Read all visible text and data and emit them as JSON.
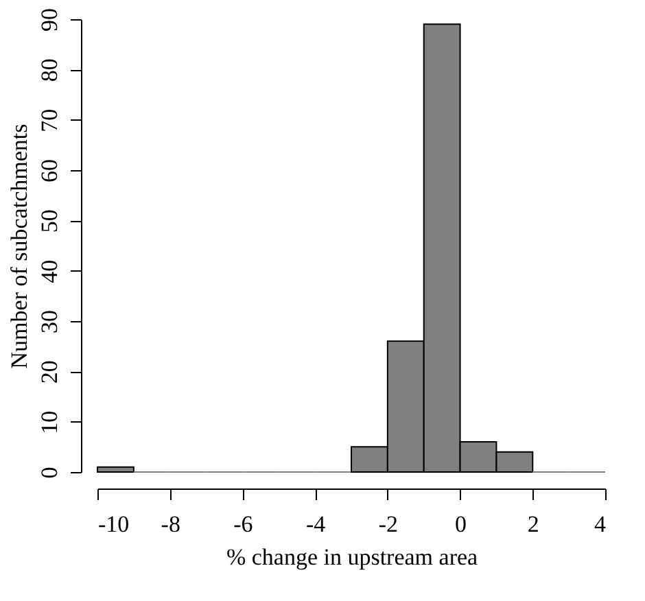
{
  "chart_data": {
    "type": "histogram",
    "xlabel": "% change in upstream area",
    "ylabel": "Number of subcatchments",
    "bins": [
      -10,
      -9,
      -8,
      -7,
      -6,
      -5,
      -4,
      -3,
      -2,
      -1,
      0,
      1,
      2,
      3,
      4
    ],
    "values": [
      1,
      0,
      0,
      0,
      0,
      0,
      0,
      5,
      26,
      89,
      6,
      4,
      0,
      0
    ],
    "color": "#808080",
    "xlim": [
      -10,
      4
    ],
    "xticks": [
      -10,
      -8,
      -6,
      -4,
      -2,
      0,
      2,
      4
    ],
    "ylim": [
      0,
      90
    ],
    "yticks": [
      0,
      10,
      20,
      30,
      40,
      50,
      60,
      70,
      80,
      90
    ],
    "grid": false
  }
}
